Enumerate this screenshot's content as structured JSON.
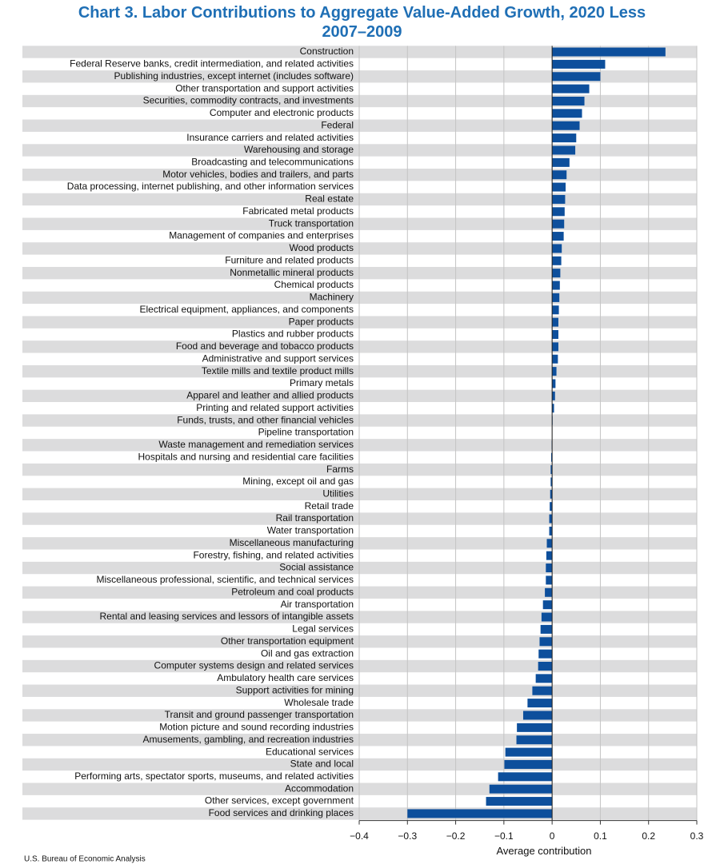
{
  "chart_data": {
    "type": "hbar",
    "title": "Chart 3. Labor Contributions to Aggregate Value-Added Growth, 2020 Less 2007–2009",
    "xlabel": "Average contribution",
    "source": "U.S. Bureau of Economic Analysis",
    "color": "#0d4f9c",
    "band_color": "#dcdcdd",
    "grid": true,
    "categories": [
      "Construction",
      "Federal Reserve banks, credit intermediation, and related activities",
      "Publishing industries, except internet (includes software)",
      "Other transportation and support activities",
      "Securities, commodity contracts, and investments",
      "Computer and electronic products",
      "Federal",
      "Insurance carriers and related activities",
      "Warehousing and storage",
      "Broadcasting and telecommunications",
      "Motor vehicles, bodies and trailers, and parts",
      "Data processing, internet publishing, and other information services",
      "Real estate",
      "Fabricated metal products",
      "Truck transportation",
      "Management of companies and enterprises",
      "Wood products",
      "Furniture and related products",
      "Nonmetallic mineral products",
      "Chemical products",
      "Machinery",
      "Electrical equipment, appliances, and components",
      "Paper products",
      "Plastics and rubber products",
      "Food and beverage and tobacco products",
      "Administrative and support services",
      "Textile mills and textile product mills",
      "Primary metals",
      "Apparel and leather and allied products",
      "Printing and related support activities",
      "Funds, trusts, and other financial vehicles",
      "Pipeline transportation",
      "Waste management and remediation services",
      "Hospitals and nursing and residential care facilities",
      "Farms",
      "Mining, except oil and gas",
      "Utilities",
      "Retail trade",
      "Rail transportation",
      "Water transportation",
      "Miscellaneous manufacturing",
      "Forestry, fishing, and related activities",
      "Social assistance",
      "Miscellaneous professional, scientific, and technical services",
      "Petroleum and coal products",
      "Air transportation",
      "Rental and leasing services and lessors of intangible assets",
      "Legal services",
      "Other transportation equipment",
      "Oil and gas extraction",
      "Computer systems design and related services",
      "Ambulatory health care services",
      "Support activities for mining",
      "Wholesale trade",
      "Transit and ground passenger transportation",
      "Motion picture and sound recording industries",
      "Amusements, gambling, and recreation industries",
      "Educational services",
      "State and local",
      "Performing arts, spectator sports, museums, and related activities",
      "Accommodation",
      "Other services, except government",
      "Food services and drinking places"
    ],
    "values": [
      0.235,
      0.11,
      0.1,
      0.077,
      0.067,
      0.062,
      0.057,
      0.05,
      0.048,
      0.036,
      0.03,
      0.028,
      0.027,
      0.026,
      0.025,
      0.024,
      0.02,
      0.019,
      0.017,
      0.016,
      0.015,
      0.014,
      0.013,
      0.013,
      0.013,
      0.012,
      0.009,
      0.007,
      0.006,
      0.004,
      0.001,
      0.0005,
      -0.001,
      -0.002,
      -0.003,
      -0.003,
      -0.004,
      -0.005,
      -0.006,
      -0.006,
      -0.011,
      -0.012,
      -0.013,
      -0.013,
      -0.015,
      -0.019,
      -0.022,
      -0.024,
      -0.026,
      -0.028,
      -0.029,
      -0.034,
      -0.041,
      -0.051,
      -0.06,
      -0.073,
      -0.074,
      -0.097,
      -0.099,
      -0.112,
      -0.13,
      -0.137,
      -0.3
    ],
    "xlim": [
      -0.4,
      0.3
    ],
    "xticks": [
      {
        "value": -0.4,
        "label": "−0.4"
      },
      {
        "value": -0.3,
        "label": "−0.3"
      },
      {
        "value": -0.2,
        "label": "−0.2"
      },
      {
        "value": -0.1,
        "label": "−0.1"
      },
      0,
      0.1,
      0.2,
      0.3
    ]
  }
}
